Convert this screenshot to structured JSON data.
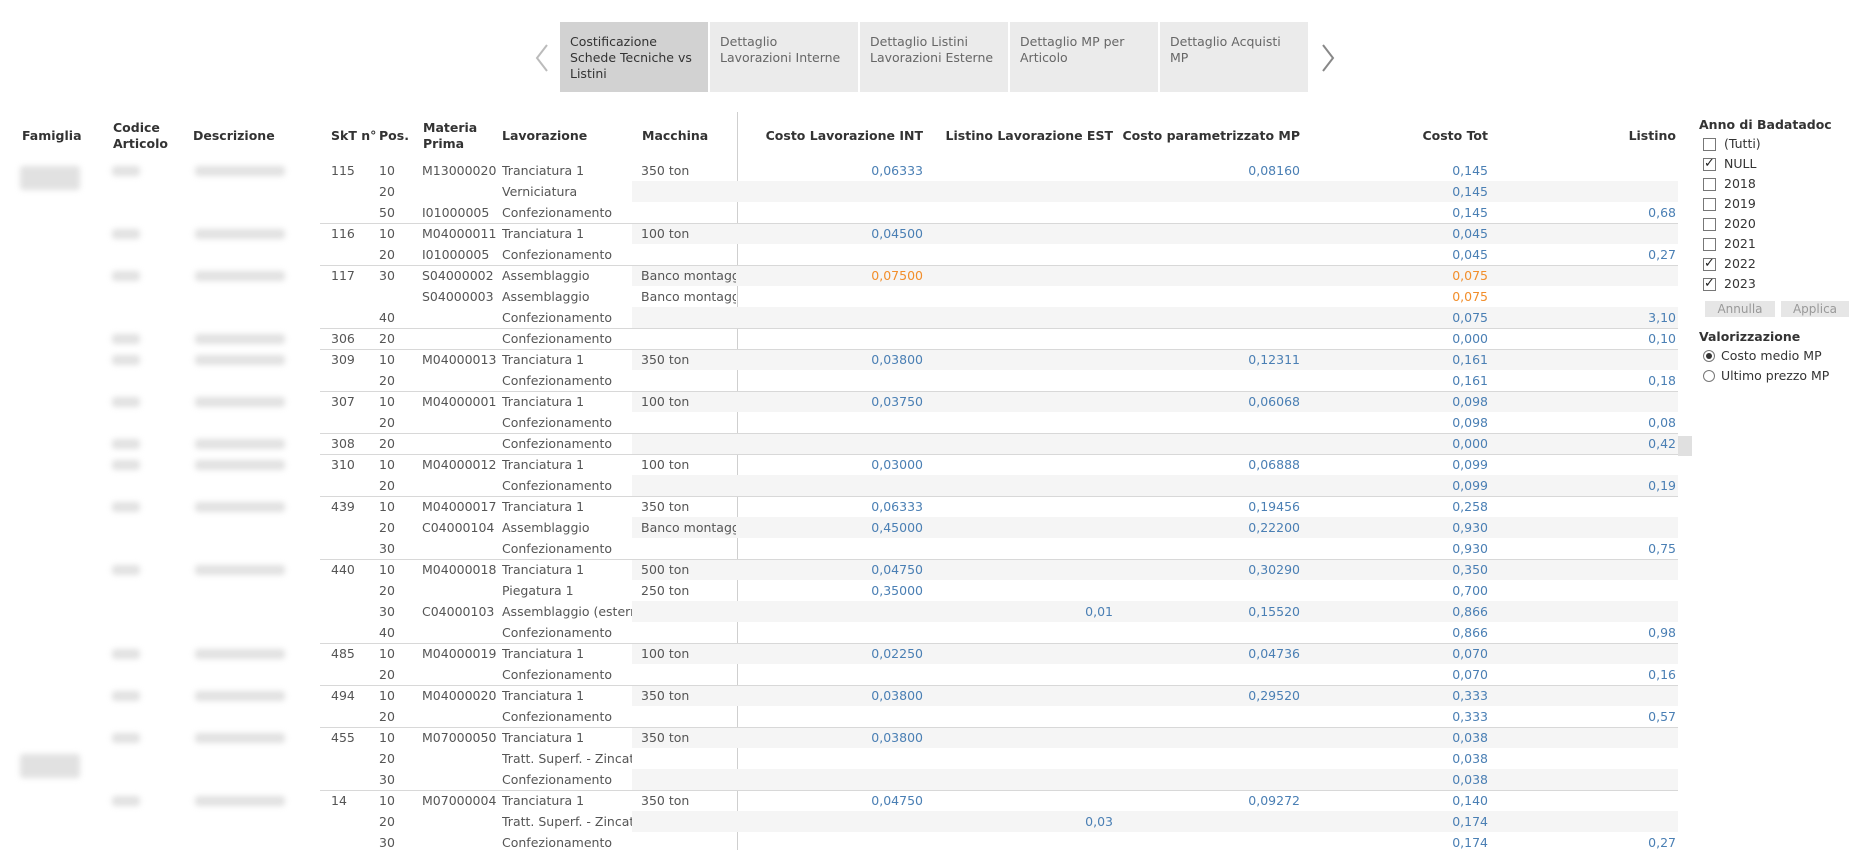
{
  "tabs": [
    {
      "label": "Costificazione Schede Tecniche vs Listini",
      "active": true
    },
    {
      "label": "Dettaglio Lavorazioni Interne",
      "active": false
    },
    {
      "label": "Dettaglio Listini Lavorazioni Esterne",
      "active": false
    },
    {
      "label": "Dettaglio MP per Articolo",
      "active": false
    },
    {
      "label": "Dettaglio Acquisti MP",
      "active": false
    }
  ],
  "nav": {
    "prev_icon": "chevron-left-icon",
    "next_icon": "chevron-right-icon"
  },
  "headers": {
    "famiglia": "Famiglia",
    "codice": "Codice Articolo",
    "descrizione": "Descrizione",
    "skt": "SkT n°",
    "pos": "Pos.",
    "materia": "Materia Prima",
    "lavorazione": "Lavorazione",
    "macchina": "Macchina",
    "costo_int": "Costo Lavorazione INT",
    "listino_est": "Listino Lavorazione EST",
    "costo_mp": "Costo parametrizzato MP",
    "costo_tot": "Costo Tot",
    "listino": "Listino"
  },
  "rows": [
    {
      "skt": "115",
      "pos": "10",
      "mp": "M13000020",
      "lav": "Tranciatura 1",
      "mac": "350 ton",
      "int": "0,06333",
      "est": "",
      "mpc": "0,08160",
      "tot": "0,145",
      "lis": ""
    },
    {
      "skt": "",
      "pos": "20",
      "mp": "",
      "lav": "Verniciatura",
      "mac": "",
      "int": "",
      "est": "",
      "mpc": "",
      "tot": "0,145",
      "lis": ""
    },
    {
      "skt": "",
      "pos": "50",
      "mp": "I01000005",
      "lav": "Confezionamento",
      "mac": "",
      "int": "",
      "est": "",
      "mpc": "",
      "tot": "0,145",
      "lis": "0,68"
    },
    {
      "skt": "116",
      "pos": "10",
      "mp": "M04000011",
      "lav": "Tranciatura 1",
      "mac": "100 ton",
      "int": "0,04500",
      "est": "",
      "mpc": "",
      "tot": "0,045",
      "lis": ""
    },
    {
      "skt": "",
      "pos": "20",
      "mp": "I01000005",
      "lav": "Confezionamento",
      "mac": "",
      "int": "",
      "est": "",
      "mpc": "",
      "tot": "0,045",
      "lis": "0,27"
    },
    {
      "skt": "117",
      "pos": "30",
      "mp": "S04000002",
      "lav": "Assemblaggio",
      "mac": "Banco montaggio",
      "int": "0,07500",
      "est": "",
      "mpc": "",
      "tot": "0,075",
      "lis": "",
      "orange": true
    },
    {
      "skt": "",
      "pos": "",
      "mp": "S04000003",
      "lav": "Assemblaggio",
      "mac": "Banco montaggio",
      "int": "",
      "est": "",
      "mpc": "",
      "tot": "0,075",
      "lis": "",
      "orange": true
    },
    {
      "skt": "",
      "pos": "40",
      "mp": "",
      "lav": "Confezionamento",
      "mac": "",
      "int": "",
      "est": "",
      "mpc": "",
      "tot": "0,075",
      "lis": "3,10"
    },
    {
      "skt": "306",
      "pos": "20",
      "mp": "",
      "lav": "Confezionamento",
      "mac": "",
      "int": "",
      "est": "",
      "mpc": "",
      "tot": "0,000",
      "lis": "0,10"
    },
    {
      "skt": "309",
      "pos": "10",
      "mp": "M04000013",
      "lav": "Tranciatura 1",
      "mac": "350 ton",
      "int": "0,03800",
      "est": "",
      "mpc": "0,12311",
      "tot": "0,161",
      "lis": ""
    },
    {
      "skt": "",
      "pos": "20",
      "mp": "",
      "lav": "Confezionamento",
      "mac": "",
      "int": "",
      "est": "",
      "mpc": "",
      "tot": "0,161",
      "lis": "0,18"
    },
    {
      "skt": "307",
      "pos": "10",
      "mp": "M04000001",
      "lav": "Tranciatura 1",
      "mac": "100 ton",
      "int": "0,03750",
      "est": "",
      "mpc": "0,06068",
      "tot": "0,098",
      "lis": ""
    },
    {
      "skt": "",
      "pos": "20",
      "mp": "",
      "lav": "Confezionamento",
      "mac": "",
      "int": "",
      "est": "",
      "mpc": "",
      "tot": "0,098",
      "lis": "0,08"
    },
    {
      "skt": "308",
      "pos": "20",
      "mp": "",
      "lav": "Confezionamento",
      "mac": "",
      "int": "",
      "est": "",
      "mpc": "",
      "tot": "0,000",
      "lis": "0,42"
    },
    {
      "skt": "310",
      "pos": "10",
      "mp": "M04000012",
      "lav": "Tranciatura 1",
      "mac": "100 ton",
      "int": "0,03000",
      "est": "",
      "mpc": "0,06888",
      "tot": "0,099",
      "lis": ""
    },
    {
      "skt": "",
      "pos": "20",
      "mp": "",
      "lav": "Confezionamento",
      "mac": "",
      "int": "",
      "est": "",
      "mpc": "",
      "tot": "0,099",
      "lis": "0,19"
    },
    {
      "skt": "439",
      "pos": "10",
      "mp": "M04000017",
      "lav": "Tranciatura 1",
      "mac": "350 ton",
      "int": "0,06333",
      "est": "",
      "mpc": "0,19456",
      "tot": "0,258",
      "lis": ""
    },
    {
      "skt": "",
      "pos": "20",
      "mp": "C04000104",
      "lav": "Assemblaggio",
      "mac": "Banco montaggio",
      "int": "0,45000",
      "est": "",
      "mpc": "0,22200",
      "tot": "0,930",
      "lis": ""
    },
    {
      "skt": "",
      "pos": "30",
      "mp": "",
      "lav": "Confezionamento",
      "mac": "",
      "int": "",
      "est": "",
      "mpc": "",
      "tot": "0,930",
      "lis": "0,75"
    },
    {
      "skt": "440",
      "pos": "10",
      "mp": "M04000018",
      "lav": "Tranciatura 1",
      "mac": "500 ton",
      "int": "0,04750",
      "est": "",
      "mpc": "0,30290",
      "tot": "0,350",
      "lis": ""
    },
    {
      "skt": "",
      "pos": "20",
      "mp": "",
      "lav": "Piegatura 1",
      "mac": "250 ton",
      "int": "0,35000",
      "est": "",
      "mpc": "",
      "tot": "0,700",
      "lis": ""
    },
    {
      "skt": "",
      "pos": "30",
      "mp": "C04000103",
      "lav": "Assemblaggio (estern..",
      "mac": "",
      "int": "",
      "est": "0,01",
      "mpc": "0,15520",
      "tot": "0,866",
      "lis": ""
    },
    {
      "skt": "",
      "pos": "40",
      "mp": "",
      "lav": "Confezionamento",
      "mac": "",
      "int": "",
      "est": "",
      "mpc": "",
      "tot": "0,866",
      "lis": "0,98"
    },
    {
      "skt": "485",
      "pos": "10",
      "mp": "M04000019",
      "lav": "Tranciatura 1",
      "mac": "100 ton",
      "int": "0,02250",
      "est": "",
      "mpc": "0,04736",
      "tot": "0,070",
      "lis": ""
    },
    {
      "skt": "",
      "pos": "20",
      "mp": "",
      "lav": "Confezionamento",
      "mac": "",
      "int": "",
      "est": "",
      "mpc": "",
      "tot": "0,070",
      "lis": "0,16"
    },
    {
      "skt": "494",
      "pos": "10",
      "mp": "M04000020",
      "lav": "Tranciatura 1",
      "mac": "350 ton",
      "int": "0,03800",
      "est": "",
      "mpc": "0,29520",
      "tot": "0,333",
      "lis": ""
    },
    {
      "skt": "",
      "pos": "20",
      "mp": "",
      "lav": "Confezionamento",
      "mac": "",
      "int": "",
      "est": "",
      "mpc": "",
      "tot": "0,333",
      "lis": "0,57"
    },
    {
      "skt": "455",
      "pos": "10",
      "mp": "M07000050",
      "lav": "Tranciatura 1",
      "mac": "350 ton",
      "int": "0,03800",
      "est": "",
      "mpc": "",
      "tot": "0,038",
      "lis": ""
    },
    {
      "skt": "",
      "pos": "20",
      "mp": "",
      "lav": "Tratt. Superf. - Zincat..",
      "mac": "",
      "int": "",
      "est": "",
      "mpc": "",
      "tot": "0,038",
      "lis": ""
    },
    {
      "skt": "",
      "pos": "30",
      "mp": "",
      "lav": "Confezionamento",
      "mac": "",
      "int": "",
      "est": "",
      "mpc": "",
      "tot": "0,038",
      "lis": ""
    },
    {
      "skt": "14",
      "pos": "10",
      "mp": "M07000004",
      "lav": "Tranciatura 1",
      "mac": "350 ton",
      "int": "0,04750",
      "est": "",
      "mpc": "0,09272",
      "tot": "0,140",
      "lis": ""
    },
    {
      "skt": "",
      "pos": "20",
      "mp": "",
      "lav": "Tratt. Superf. - Zincat..",
      "mac": "",
      "int": "",
      "est": "0,03",
      "mpc": "",
      "tot": "0,174",
      "lis": ""
    },
    {
      "skt": "",
      "pos": "30",
      "mp": "",
      "lav": "Confezionamento",
      "mac": "",
      "int": "",
      "est": "",
      "mpc": "",
      "tot": "0,174",
      "lis": "0,27"
    }
  ],
  "filters": {
    "anno_title": "Anno di Badatadoc",
    "anno_options": [
      {
        "label": "(Tutti)",
        "checked": false
      },
      {
        "label": "NULL",
        "checked": true
      },
      {
        "label": "2018",
        "checked": false
      },
      {
        "label": "2019",
        "checked": false
      },
      {
        "label": "2020",
        "checked": false
      },
      {
        "label": "2021",
        "checked": false
      },
      {
        "label": "2022",
        "checked": true
      },
      {
        "label": "2023",
        "checked": true
      }
    ],
    "annulla": "Annulla",
    "applica": "Applica",
    "valorizzazione_title": "Valorizzazione",
    "valorizzazione_options": [
      {
        "label": "Costo medio MP",
        "selected": true
      },
      {
        "label": "Ultimo prezzo MP",
        "selected": false
      }
    ]
  },
  "colors": {
    "blue": "#4a7fb4",
    "orange": "#f28e2b"
  }
}
